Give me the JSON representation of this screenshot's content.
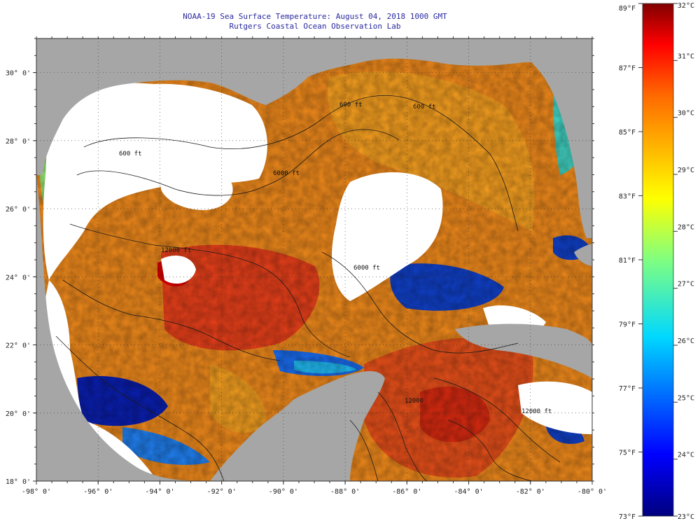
{
  "header": {
    "title_line1": "NOAA-19 Sea Surface Temperature:  August 04, 2018 1000 GMT",
    "title_line2": "Rutgers Coastal Ocean Observation Lab"
  },
  "map": {
    "lon_range": [
      -98,
      -80
    ],
    "lat_range": [
      18,
      31
    ],
    "x_labels": [
      "-98° 0'",
      "-96° 0'",
      "-94° 0'",
      "-92° 0'",
      "-90° 0'",
      "-88° 0'",
      "-86° 0'",
      "-84° 0'",
      "-82° 0'",
      "-80° 0'"
    ],
    "y_labels": [
      "30° 0'",
      "28° 0'",
      "26° 0'",
      "24° 0'",
      "22° 0'",
      "20° 0'",
      "18° 0'"
    ],
    "contour_labels": [
      "600 ft",
      "600 ft",
      "6000 ft",
      "12000 ft",
      "6000 ft",
      "12000 ft",
      "12000",
      "600 ft"
    ],
    "colors": {
      "land": "#a6a6a6",
      "cloud": "#ffffff",
      "contour": "#1a1a1a"
    }
  },
  "colorbar": {
    "fahrenheit_labels": [
      "89°F",
      "87°F",
      "85°F",
      "83°F",
      "81°F",
      "79°F",
      "77°F",
      "75°F",
      "73°F"
    ],
    "celsius_labels": [
      "32°C",
      "31°C",
      "30°C",
      "29°C",
      "28°C",
      "27°C",
      "26°C",
      "25°C",
      "24°C",
      "23°C"
    ],
    "range_c": [
      23,
      32
    ],
    "range_f": [
      73,
      89
    ]
  }
}
